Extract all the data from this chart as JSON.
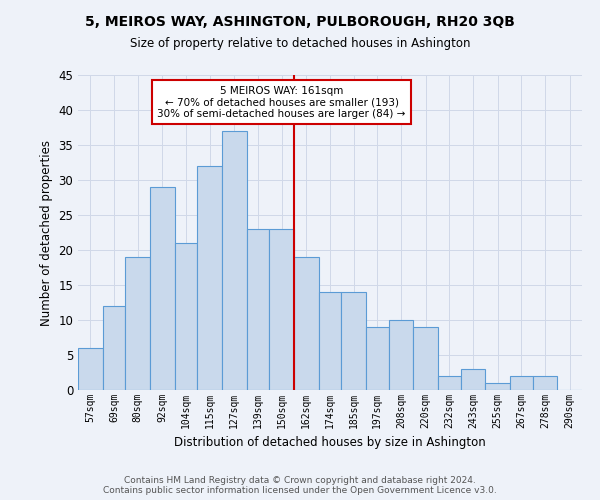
{
  "title": "5, MEIROS WAY, ASHINGTON, PULBOROUGH, RH20 3QB",
  "subtitle": "Size of property relative to detached houses in Ashington",
  "xlabel": "Distribution of detached houses by size in Ashington",
  "ylabel": "Number of detached properties",
  "bar_labels": [
    "57sqm",
    "69sqm",
    "80sqm",
    "92sqm",
    "104sqm",
    "115sqm",
    "127sqm",
    "139sqm",
    "150sqm",
    "162sqm",
    "174sqm",
    "185sqm",
    "197sqm",
    "208sqm",
    "220sqm",
    "232sqm",
    "243sqm",
    "255sqm",
    "267sqm",
    "278sqm",
    "290sqm"
  ],
  "bar_values": [
    6,
    12,
    19,
    29,
    21,
    32,
    37,
    23,
    23,
    19,
    14,
    14,
    9,
    10,
    9,
    2,
    3,
    1,
    2,
    2,
    0
  ],
  "bar_color": "#c9d9ec",
  "bar_edge_color": "#5b9bd5",
  "property_line_x": 162,
  "annotation_text": "5 MEIROS WAY: 161sqm\n← 70% of detached houses are smaller (193)\n30% of semi-detached houses are larger (84) →",
  "annotation_box_color": "#ffffff",
  "annotation_box_edge_color": "#cc0000",
  "line_color": "#cc0000",
  "grid_color": "#d0d8e8",
  "background_color": "#eef2f9",
  "footer_line1": "Contains HM Land Registry data © Crown copyright and database right 2024.",
  "footer_line2": "Contains public sector information licensed under the Open Government Licence v3.0.",
  "ylim": [
    0,
    45
  ],
  "bin_edges": [
    57,
    69,
    80,
    92,
    104,
    115,
    127,
    139,
    150,
    162,
    174,
    185,
    197,
    208,
    220,
    232,
    243,
    255,
    267,
    278,
    290,
    302
  ]
}
